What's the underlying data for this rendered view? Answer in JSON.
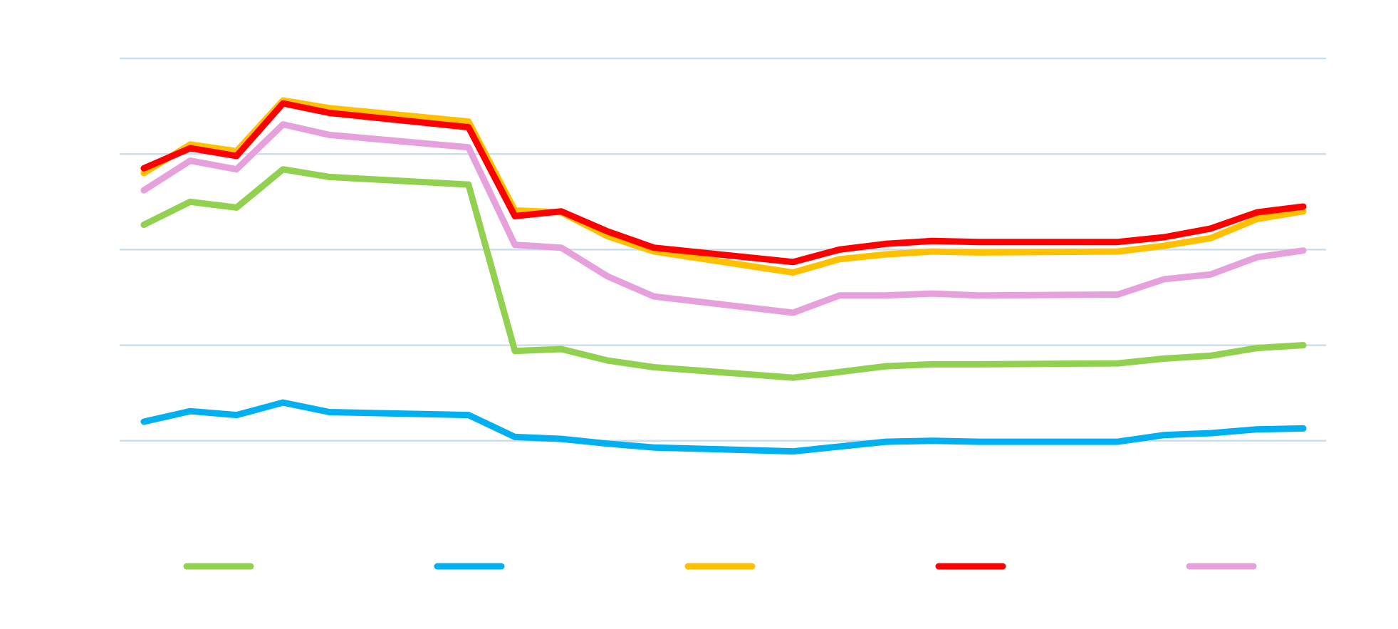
{
  "chart_data": {
    "type": "line",
    "title": "",
    "xlabel": "",
    "ylabel": "",
    "ylim": [
      0,
      5
    ],
    "grid": true,
    "grid_values": [
      1,
      2,
      3,
      4,
      5
    ],
    "grid_color": "#c9dff0",
    "legend": "bottom",
    "x": [
      1,
      2,
      3,
      4,
      5,
      8,
      9,
      10,
      11,
      12,
      15,
      16,
      17,
      18,
      19,
      22,
      23,
      24,
      25,
      26
    ],
    "series": [
      {
        "color": "#92d050",
        "values": [
          3.26,
          3.5,
          3.44,
          3.84,
          3.76,
          3.68,
          1.94,
          1.96,
          1.84,
          1.77,
          1.66,
          1.72,
          1.78,
          1.8,
          1.8,
          1.81,
          1.86,
          1.89,
          1.97,
          2.0
        ]
      },
      {
        "color": "#00b0f0",
        "values": [
          1.2,
          1.31,
          1.27,
          1.4,
          1.3,
          1.27,
          1.04,
          1.02,
          0.97,
          0.93,
          0.89,
          0.94,
          0.99,
          1.0,
          0.99,
          0.99,
          1.06,
          1.08,
          1.12,
          1.13
        ]
      },
      {
        "color": "#ffc000",
        "values": [
          3.8,
          4.1,
          4.03,
          4.56,
          4.48,
          4.34,
          3.41,
          3.39,
          3.14,
          2.98,
          2.76,
          2.9,
          2.95,
          2.98,
          2.97,
          2.98,
          3.04,
          3.12,
          3.32,
          3.4
        ]
      },
      {
        "color": "#ff0000",
        "values": [
          3.85,
          4.06,
          3.98,
          4.53,
          4.43,
          4.28,
          3.35,
          3.4,
          3.19,
          3.02,
          2.87,
          3.0,
          3.06,
          3.09,
          3.08,
          3.08,
          3.13,
          3.22,
          3.39,
          3.45
        ]
      },
      {
        "color": "#e6a0dc",
        "values": [
          3.62,
          3.93,
          3.84,
          4.31,
          4.2,
          4.07,
          3.05,
          3.02,
          2.72,
          2.51,
          2.34,
          2.52,
          2.52,
          2.54,
          2.52,
          2.53,
          2.69,
          2.74,
          2.92,
          2.99
        ]
      }
    ]
  }
}
